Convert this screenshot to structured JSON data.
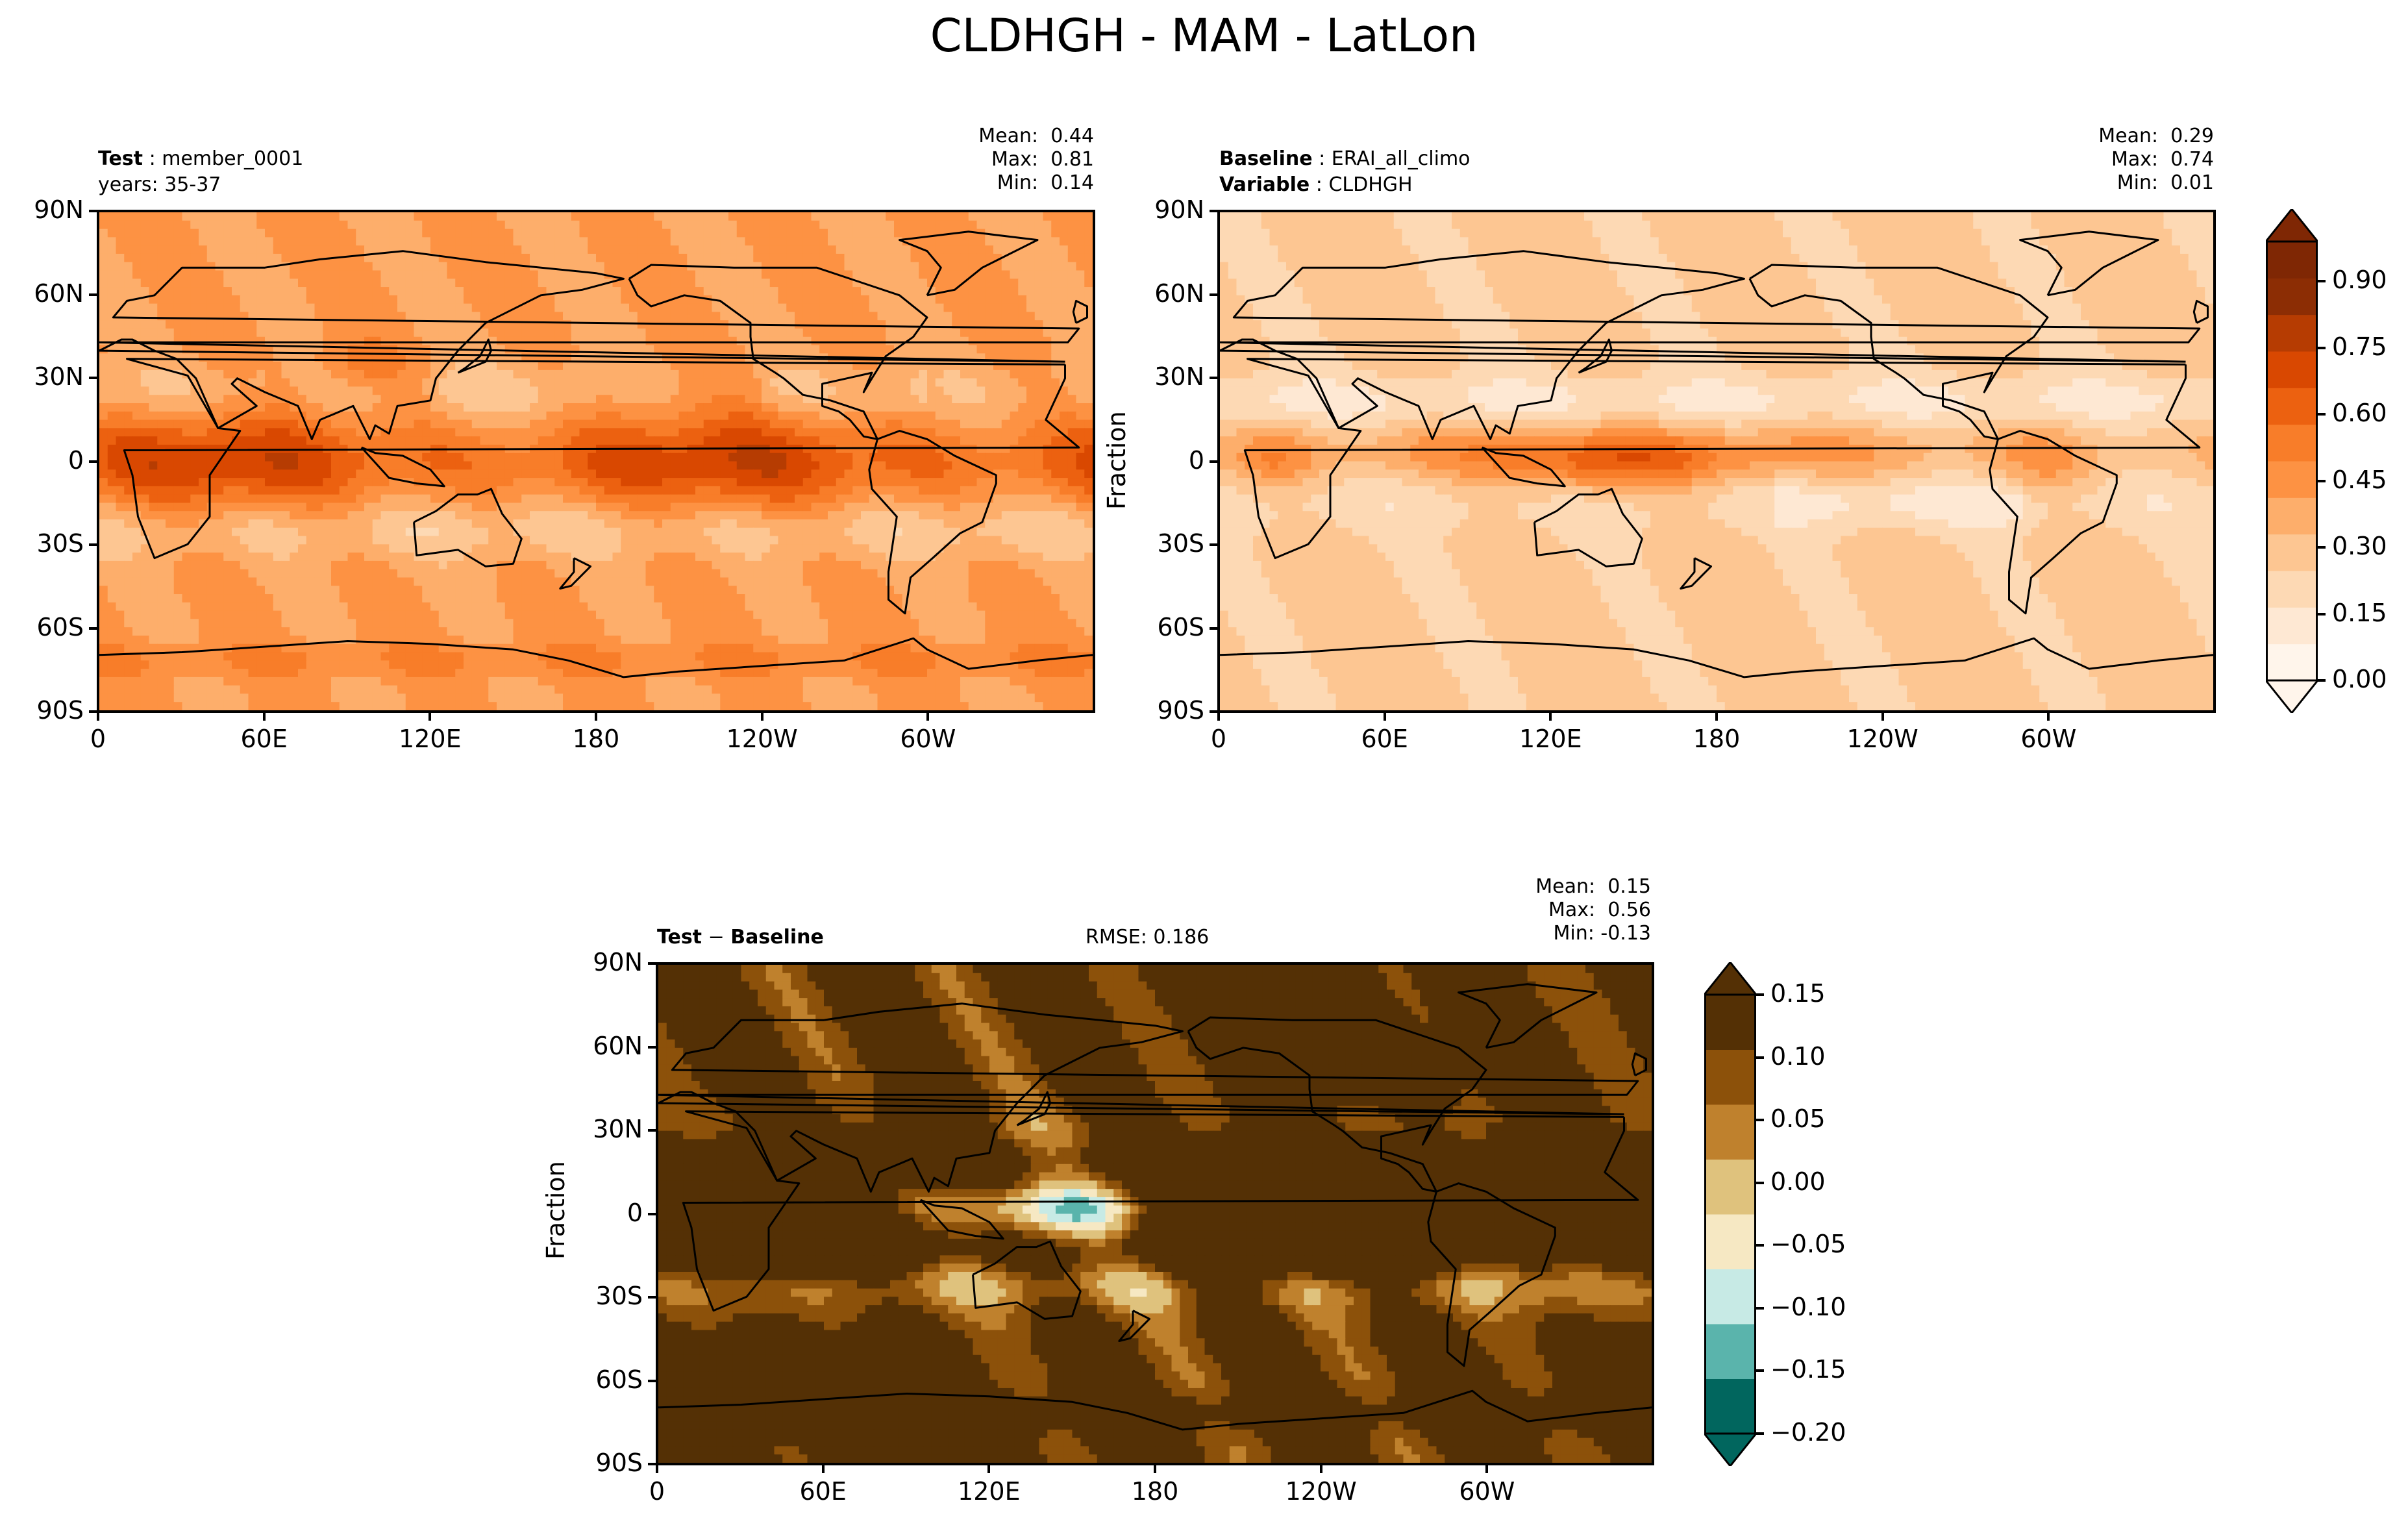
{
  "title": "CLDHGH - MAM - LatLon",
  "panels": {
    "test": {
      "label_bold": "Test",
      "label_rest": "member_0001",
      "line2": "years: 35-37",
      "stats": "Mean:  0.44\nMax:  0.81\nMin:  0.14"
    },
    "baseline": {
      "label_bold": "Baseline",
      "label_rest": "ERAI_all_climo",
      "var_bold": "Variable",
      "var_rest": "CLDHGH",
      "ylabel": "Fraction",
      "stats": "Mean:  0.29\nMax:  0.74\nMin:  0.01"
    },
    "diff": {
      "label_bold": "Test",
      "label_minus": " − ",
      "label_bold2": "Baseline",
      "rmse": "RMSE: 0.186",
      "ylabel": "Fraction",
      "stats": "Mean:  0.15\nMax:  0.56\nMin: -0.13"
    }
  },
  "axes": {
    "y_ticks": [
      "90N",
      "60N",
      "30N",
      "0",
      "30S",
      "60S",
      "90S"
    ],
    "x_ticks": [
      "0",
      "60E",
      "120E",
      "180",
      "120W",
      "60W"
    ]
  },
  "colorbars": {
    "top": {
      "ticks": [
        "0.90",
        "0.75",
        "0.60",
        "0.45",
        "0.30",
        "0.15",
        "0.00"
      ],
      "colors": [
        "#fff5eb",
        "#fee8d3",
        "#fdd9b4",
        "#fdc692",
        "#fdae6b",
        "#fd9243",
        "#f87d29",
        "#ec6110",
        "#d94801",
        "#b63c02",
        "#8c2d04",
        "#7f2704"
      ]
    },
    "diff": {
      "ticks": [
        "0.15",
        "0.10",
        "0.05",
        "0.00",
        "−0.05",
        "−0.10",
        "−0.15",
        "−0.20"
      ],
      "colors": [
        "#01665e",
        "#5ab4ac",
        "#c7eae5",
        "#f6e8c3",
        "#dfc27d",
        "#bf812d",
        "#8c510a",
        "#543005"
      ]
    }
  },
  "chart_data": [
    {
      "type": "heatmap",
      "title": "Test: member_0001",
      "variable": "CLDHGH",
      "season": "MAM",
      "units": "Fraction",
      "x_ticks": [
        "0",
        "60E",
        "120E",
        "180",
        "120W",
        "60W"
      ],
      "y_ticks": [
        "90N",
        "60N",
        "30N",
        "0",
        "30S",
        "60S",
        "90S"
      ],
      "stats": {
        "mean": 0.44,
        "max": 0.81,
        "min": 0.14
      },
      "colorbar_range": [
        0.0,
        0.9
      ]
    },
    {
      "type": "heatmap",
      "title": "Baseline: ERAI_all_climo",
      "variable": "CLDHGH",
      "units": "Fraction",
      "stats": {
        "mean": 0.29,
        "max": 0.74,
        "min": 0.01
      },
      "colorbar_range": [
        0.0,
        0.9
      ]
    },
    {
      "type": "heatmap",
      "title": "Test − Baseline",
      "units": "Fraction",
      "rmse": 0.186,
      "stats": {
        "mean": 0.15,
        "max": 0.56,
        "min": -0.13
      },
      "colorbar_range": [
        -0.2,
        0.15
      ]
    }
  ]
}
